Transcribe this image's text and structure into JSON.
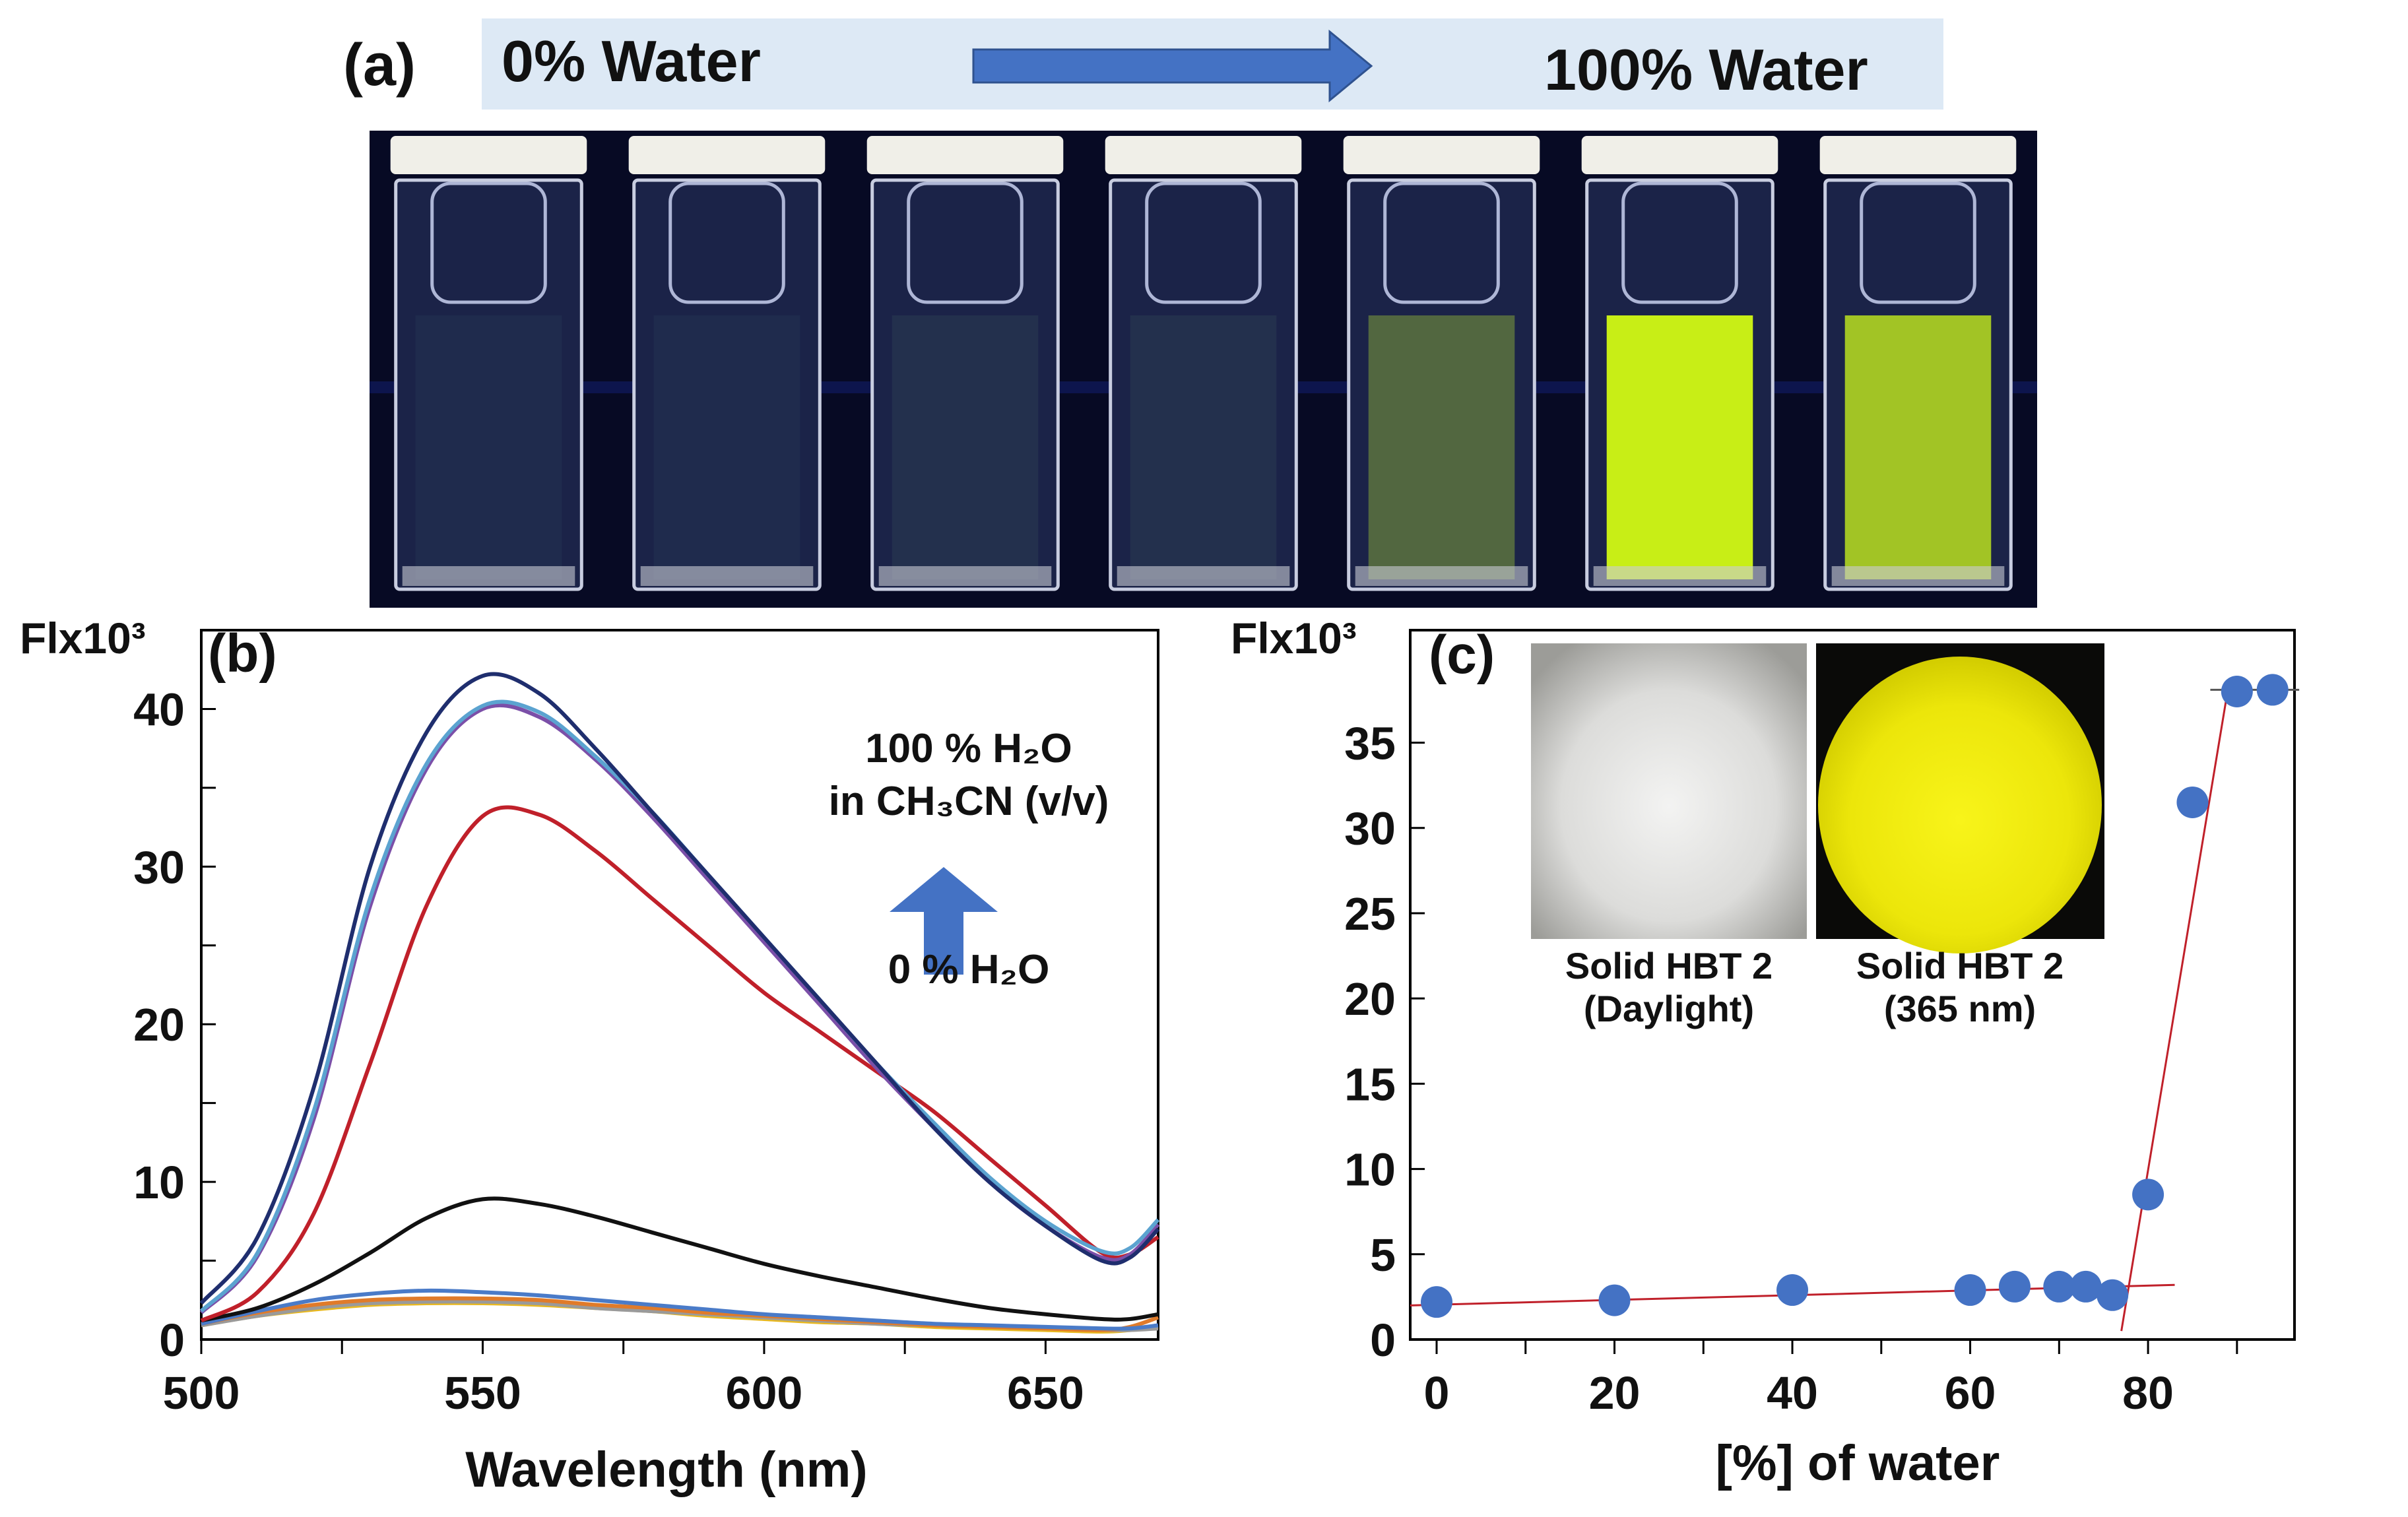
{
  "panel_a": {
    "label": "(a)",
    "banner_left": "0% Water",
    "banner_right": "100% Water",
    "colors": {
      "banner": "#dde9f5",
      "arrow": "#4472c4",
      "background": "#070a24"
    },
    "cuvettes": [
      {
        "fluorescence": 0.0
      },
      {
        "fluorescence": 0.0
      },
      {
        "fluorescence": 0.05
      },
      {
        "fluorescence": 0.05
      },
      {
        "fluorescence": 0.45
      },
      {
        "fluorescence": 1.0
      },
      {
        "fluorescence": 0.85
      }
    ]
  },
  "panel_b": {
    "label": "(b)",
    "y_unit": "Flx10³",
    "annotation_top_line1": "100 % H₂O",
    "annotation_top_line2": "in CH₃CN (v/v)",
    "annotation_bottom": "0 % H₂O"
  },
  "panel_c": {
    "label": "(c)",
    "y_unit": "Flx10³",
    "inset_daylight_line1": "Solid HBT 2",
    "inset_daylight_line2": "(Daylight)",
    "inset_uv_line1": "Solid HBT 2",
    "inset_uv_line2": "(365 nm)"
  },
  "chart_data": [
    {
      "type": "line",
      "xlabel": "Wavelength (nm)",
      "ylabel": "Flx10³",
      "xlim": [
        500,
        670
      ],
      "ylim": [
        0,
        45
      ],
      "xticks": [
        500,
        550,
        600,
        650
      ],
      "yticks": [
        0,
        10,
        20,
        30,
        40
      ],
      "grid": false,
      "x": [
        500,
        510,
        520,
        530,
        540,
        550,
        560,
        570,
        580,
        590,
        600,
        610,
        620,
        630,
        640,
        650,
        660,
        665,
        670
      ],
      "series": [
        {
          "color": "#1f2e6e",
          "values": [
            2.3,
            6.5,
            16,
            30,
            38.5,
            42.1,
            41,
            37.5,
            33.5,
            29.5,
            25.5,
            21.5,
            17.5,
            13.5,
            10,
            7.2,
            5.0,
            5.2,
            7.0
          ]
        },
        {
          "color": "#5ba3d0",
          "values": [
            1.8,
            5.5,
            14.5,
            28,
            36.5,
            40.2,
            39.8,
            37,
            33.5,
            29.5,
            25.5,
            21.5,
            17.5,
            13.8,
            10.3,
            7.5,
            5.6,
            5.8,
            7.6
          ]
        },
        {
          "color": "#7b4fa8",
          "values": [
            1.7,
            5.3,
            14,
            27.5,
            36.2,
            40.0,
            39.5,
            36.8,
            33.2,
            29.2,
            25.2,
            21.2,
            17.2,
            13.5,
            10,
            7.2,
            5.2,
            5.4,
            7.3
          ]
        },
        {
          "color": "#c0202a",
          "values": [
            1.2,
            3.0,
            8.0,
            17.5,
            27.5,
            33.2,
            33.3,
            31.0,
            28.0,
            25.0,
            22.0,
            19.5,
            17.0,
            14.5,
            11.5,
            8.5,
            5.5,
            5.4,
            6.5
          ]
        },
        {
          "color": "#111111",
          "values": [
            1.2,
            2.0,
            3.5,
            5.5,
            7.7,
            8.9,
            8.6,
            7.8,
            6.8,
            5.8,
            4.8,
            4.0,
            3.3,
            2.6,
            2.0,
            1.6,
            1.3,
            1.3,
            1.6
          ]
        },
        {
          "color": "#4a7bc8",
          "values": [
            1.0,
            1.8,
            2.5,
            2.9,
            3.1,
            3.0,
            2.8,
            2.5,
            2.2,
            1.9,
            1.6,
            1.4,
            1.2,
            1.0,
            0.9,
            0.8,
            0.7,
            0.7,
            0.9
          ]
        },
        {
          "color": "#e07b2a",
          "values": [
            1.0,
            1.7,
            2.2,
            2.5,
            2.6,
            2.6,
            2.5,
            2.2,
            2.0,
            1.7,
            1.5,
            1.3,
            1.1,
            0.9,
            0.8,
            0.7,
            0.6,
            0.8,
            1.4
          ]
        },
        {
          "color": "#9a9a9a",
          "values": [
            0.9,
            1.5,
            2.0,
            2.3,
            2.4,
            2.4,
            2.3,
            2.0,
            1.8,
            1.6,
            1.4,
            1.2,
            1.0,
            0.9,
            0.8,
            0.7,
            0.6,
            0.6,
            0.7
          ]
        },
        {
          "color": "#e8b820",
          "values": [
            0.9,
            1.5,
            1.9,
            2.2,
            2.3,
            2.3,
            2.2,
            2.0,
            1.8,
            1.5,
            1.3,
            1.1,
            1.0,
            0.8,
            0.7,
            0.6,
            0.5,
            0.6,
            0.8
          ]
        }
      ]
    },
    {
      "type": "scatter",
      "xlabel": "[%] of water",
      "ylabel": "Flx10³",
      "xlim": [
        0,
        100
      ],
      "ylim": [
        0,
        38
      ],
      "xticks": [
        0,
        20,
        40,
        60,
        80
      ],
      "yticks": [
        0,
        5,
        10,
        15,
        20,
        25,
        30,
        35
      ],
      "grid": false,
      "marker_color": "#4472c4",
      "trend_color": "#c0202a",
      "x": [
        0,
        20,
        40,
        60,
        65,
        70,
        73,
        76,
        80,
        85,
        90,
        94
      ],
      "y": [
        2.2,
        2.3,
        2.9,
        2.9,
        3.1,
        3.1,
        3.1,
        2.6,
        8.5,
        31.5,
        38,
        38.1
      ],
      "trendlines": [
        {
          "x": [
            -5,
            83
          ],
          "y": [
            2.0,
            3.2
          ]
        },
        {
          "x": [
            77,
            89
          ],
          "y": [
            0.5,
            38.2
          ]
        },
        {
          "x": [
            87,
            97
          ],
          "y": [
            38.1,
            38.1
          ]
        }
      ]
    }
  ]
}
